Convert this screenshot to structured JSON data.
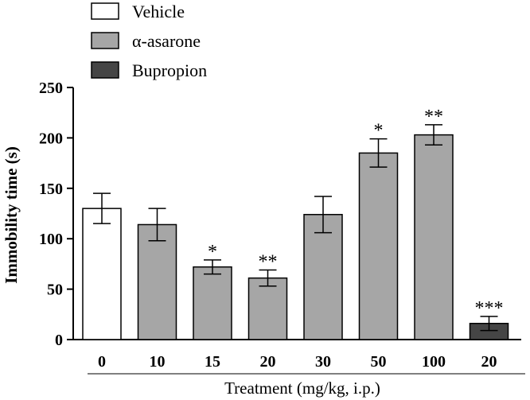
{
  "chart_data": {
    "type": "bar",
    "categories": [
      "0",
      "10",
      "15",
      "20",
      "30",
      "50",
      "100",
      "20"
    ],
    "values": [
      130,
      114,
      72,
      61,
      124,
      185,
      203,
      16
    ],
    "errors": [
      15,
      16,
      7,
      8,
      18,
      14,
      10,
      7
    ],
    "groups": [
      "Vehicle",
      "α-asarone",
      "α-asarone",
      "α-asarone",
      "α-asarone",
      "α-asarone",
      "α-asarone",
      "Bupropion"
    ],
    "significance": [
      "",
      "",
      "*",
      "**",
      "",
      "*",
      "**",
      "***"
    ],
    "legend": [
      {
        "name": "Vehicle",
        "color": "#ffffff"
      },
      {
        "name": "α-asarone",
        "color": "#a6a6a6"
      },
      {
        "name": "Bupropion",
        "color": "#454545"
      }
    ],
    "ylabel": "Immobility time (s)",
    "xlabel": "Treatment (mg/kg, i.p.)",
    "ylim": [
      0,
      250
    ],
    "yticks": [
      0,
      50,
      100,
      150,
      200,
      250
    ],
    "legend_position": "top-left",
    "grid": false
  }
}
